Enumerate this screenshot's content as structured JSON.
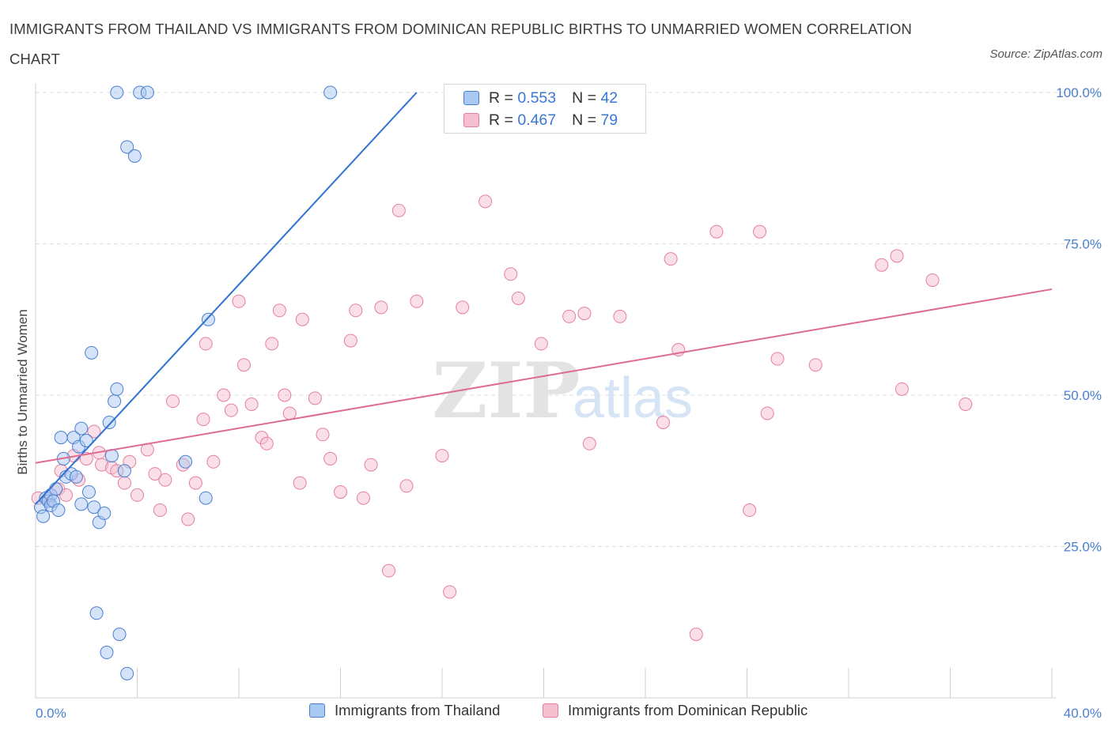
{
  "header": {
    "title": "IMMIGRANTS FROM THAILAND VS IMMIGRANTS FROM DOMINICAN REPUBLIC BIRTHS TO UNMARRIED WOMEN CORRELATION CHART",
    "source": "Source: ZipAtlas.com"
  },
  "watermark": {
    "zip": "ZIP",
    "atlas": "atlas"
  },
  "colors": {
    "thailand_fill": "#a9c8f2",
    "thailand_stroke": "#4a7fd0",
    "thailand_line": "#2f72d2",
    "dominican_fill": "#f6bfd0",
    "dominican_stroke": "#e57fa0",
    "dominican_line": "#de6b92",
    "accent_text": "#3a78d8",
    "grid": "#dddddd"
  },
  "legend_top": {
    "rows": [
      {
        "r_label": "R = ",
        "r_value": "0.553",
        "n_label": "N = ",
        "n_value": "42"
      },
      {
        "r_label": "R = ",
        "r_value": "0.467",
        "n_label": "N = ",
        "n_value": "79"
      }
    ]
  },
  "legend_bottom": {
    "items": [
      {
        "label": "Immigrants from Thailand"
      },
      {
        "label": "Immigrants from Dominican Republic"
      }
    ]
  },
  "chart_data": {
    "type": "scatter",
    "title": "IMMIGRANTS FROM THAILAND VS IMMIGRANTS FROM DOMINICAN REPUBLIC BIRTHS TO UNMARRIED WOMEN CORRELATION CHART",
    "xlabel": "",
    "ylabel": "Births to Unmarried Women",
    "xlim": [
      0,
      40
    ],
    "ylim": [
      0,
      100
    ],
    "x_tick_labels": [
      "0.0%",
      "40.0%"
    ],
    "y_tick_labels": [
      "100.0%",
      "75.0%",
      "50.0%",
      "25.0%"
    ],
    "y_ticks": [
      100,
      75,
      50,
      25
    ],
    "grid": true,
    "legend_position": "top-center",
    "series": [
      {
        "name": "Immigrants from Thailand",
        "R": 0.553,
        "N": 42,
        "trend": {
          "x0": 0.0,
          "y0": 32.0,
          "x1": 15.0,
          "y1": 100.0
        },
        "points": [
          [
            0.2,
            31.5
          ],
          [
            0.3,
            30.0
          ],
          [
            0.4,
            33.0
          ],
          [
            0.5,
            32.5
          ],
          [
            0.6,
            33.5
          ],
          [
            0.6,
            31.8
          ],
          [
            0.7,
            32.5
          ],
          [
            0.8,
            34.5
          ],
          [
            0.9,
            31.0
          ],
          [
            1.0,
            43.0
          ],
          [
            1.1,
            39.5
          ],
          [
            1.2,
            36.5
          ],
          [
            1.4,
            37.0
          ],
          [
            1.5,
            43.0
          ],
          [
            1.6,
            36.5
          ],
          [
            1.7,
            41.5
          ],
          [
            1.8,
            32.0
          ],
          [
            1.8,
            44.5
          ],
          [
            2.0,
            42.5
          ],
          [
            2.1,
            34.0
          ],
          [
            2.2,
            57.0
          ],
          [
            2.3,
            31.5
          ],
          [
            2.4,
            14.0
          ],
          [
            2.5,
            29.0
          ],
          [
            2.7,
            30.5
          ],
          [
            2.8,
            7.5
          ],
          [
            2.9,
            45.5
          ],
          [
            3.0,
            40.0
          ],
          [
            3.1,
            49.0
          ],
          [
            3.2,
            51.0
          ],
          [
            3.3,
            10.5
          ],
          [
            3.5,
            37.5
          ],
          [
            3.6,
            4.0
          ],
          [
            3.2,
            100.0
          ],
          [
            4.1,
            100.0
          ],
          [
            4.4,
            100.0
          ],
          [
            3.6,
            91.0
          ],
          [
            3.9,
            89.5
          ],
          [
            5.9,
            39.0
          ],
          [
            6.7,
            33.0
          ],
          [
            6.8,
            62.5
          ],
          [
            11.6,
            100.0
          ]
        ]
      },
      {
        "name": "Immigrants from Dominican Republic",
        "R": 0.467,
        "N": 79,
        "trend": {
          "x0": 0.0,
          "y0": 38.8,
          "x1": 40.0,
          "y1": 67.5
        },
        "points": [
          [
            0.1,
            33.0
          ],
          [
            0.5,
            32.5
          ],
          [
            0.9,
            34.5
          ],
          [
            1.0,
            37.5
          ],
          [
            1.2,
            33.5
          ],
          [
            1.5,
            40.0
          ],
          [
            1.7,
            36.0
          ],
          [
            2.0,
            39.5
          ],
          [
            2.3,
            44.0
          ],
          [
            2.5,
            40.5
          ],
          [
            2.6,
            38.5
          ],
          [
            3.0,
            38.0
          ],
          [
            3.2,
            37.5
          ],
          [
            3.5,
            35.5
          ],
          [
            3.7,
            39.0
          ],
          [
            4.0,
            33.5
          ],
          [
            4.4,
            41.0
          ],
          [
            4.7,
            37.0
          ],
          [
            4.9,
            31.0
          ],
          [
            5.1,
            36.0
          ],
          [
            5.4,
            49.0
          ],
          [
            5.8,
            38.5
          ],
          [
            6.0,
            29.5
          ],
          [
            6.3,
            35.5
          ],
          [
            6.6,
            46.0
          ],
          [
            6.7,
            58.5
          ],
          [
            7.0,
            39.0
          ],
          [
            7.4,
            50.0
          ],
          [
            7.7,
            47.5
          ],
          [
            8.0,
            65.5
          ],
          [
            8.2,
            55.0
          ],
          [
            8.5,
            48.5
          ],
          [
            8.9,
            43.0
          ],
          [
            9.1,
            42.0
          ],
          [
            9.3,
            58.5
          ],
          [
            9.6,
            64.0
          ],
          [
            9.8,
            50.0
          ],
          [
            10.0,
            47.0
          ],
          [
            10.4,
            35.5
          ],
          [
            10.5,
            62.5
          ],
          [
            11.0,
            49.5
          ],
          [
            11.3,
            43.5
          ],
          [
            11.6,
            39.5
          ],
          [
            12.0,
            34.0
          ],
          [
            12.4,
            59.0
          ],
          [
            12.6,
            64.0
          ],
          [
            12.9,
            33.0
          ],
          [
            13.2,
            38.5
          ],
          [
            13.6,
            64.5
          ],
          [
            13.9,
            21.0
          ],
          [
            14.3,
            80.5
          ],
          [
            14.6,
            35.0
          ],
          [
            15.0,
            65.5
          ],
          [
            16.0,
            40.0
          ],
          [
            16.3,
            17.5
          ],
          [
            16.8,
            64.5
          ],
          [
            17.7,
            82.0
          ],
          [
            18.7,
            70.0
          ],
          [
            19.0,
            66.0
          ],
          [
            19.9,
            58.5
          ],
          [
            21.0,
            63.0
          ],
          [
            21.6,
            63.5
          ],
          [
            21.8,
            42.0
          ],
          [
            23.0,
            63.0
          ],
          [
            24.7,
            45.5
          ],
          [
            25.0,
            72.5
          ],
          [
            25.3,
            57.5
          ],
          [
            26.0,
            10.5
          ],
          [
            26.8,
            77.0
          ],
          [
            28.1,
            31.0
          ],
          [
            28.5,
            77.0
          ],
          [
            28.8,
            47.0
          ],
          [
            29.2,
            56.0
          ],
          [
            30.7,
            55.0
          ],
          [
            33.3,
            71.5
          ],
          [
            33.9,
            73.0
          ],
          [
            34.1,
            51.0
          ],
          [
            35.3,
            69.0
          ],
          [
            36.6,
            48.5
          ]
        ]
      }
    ]
  }
}
